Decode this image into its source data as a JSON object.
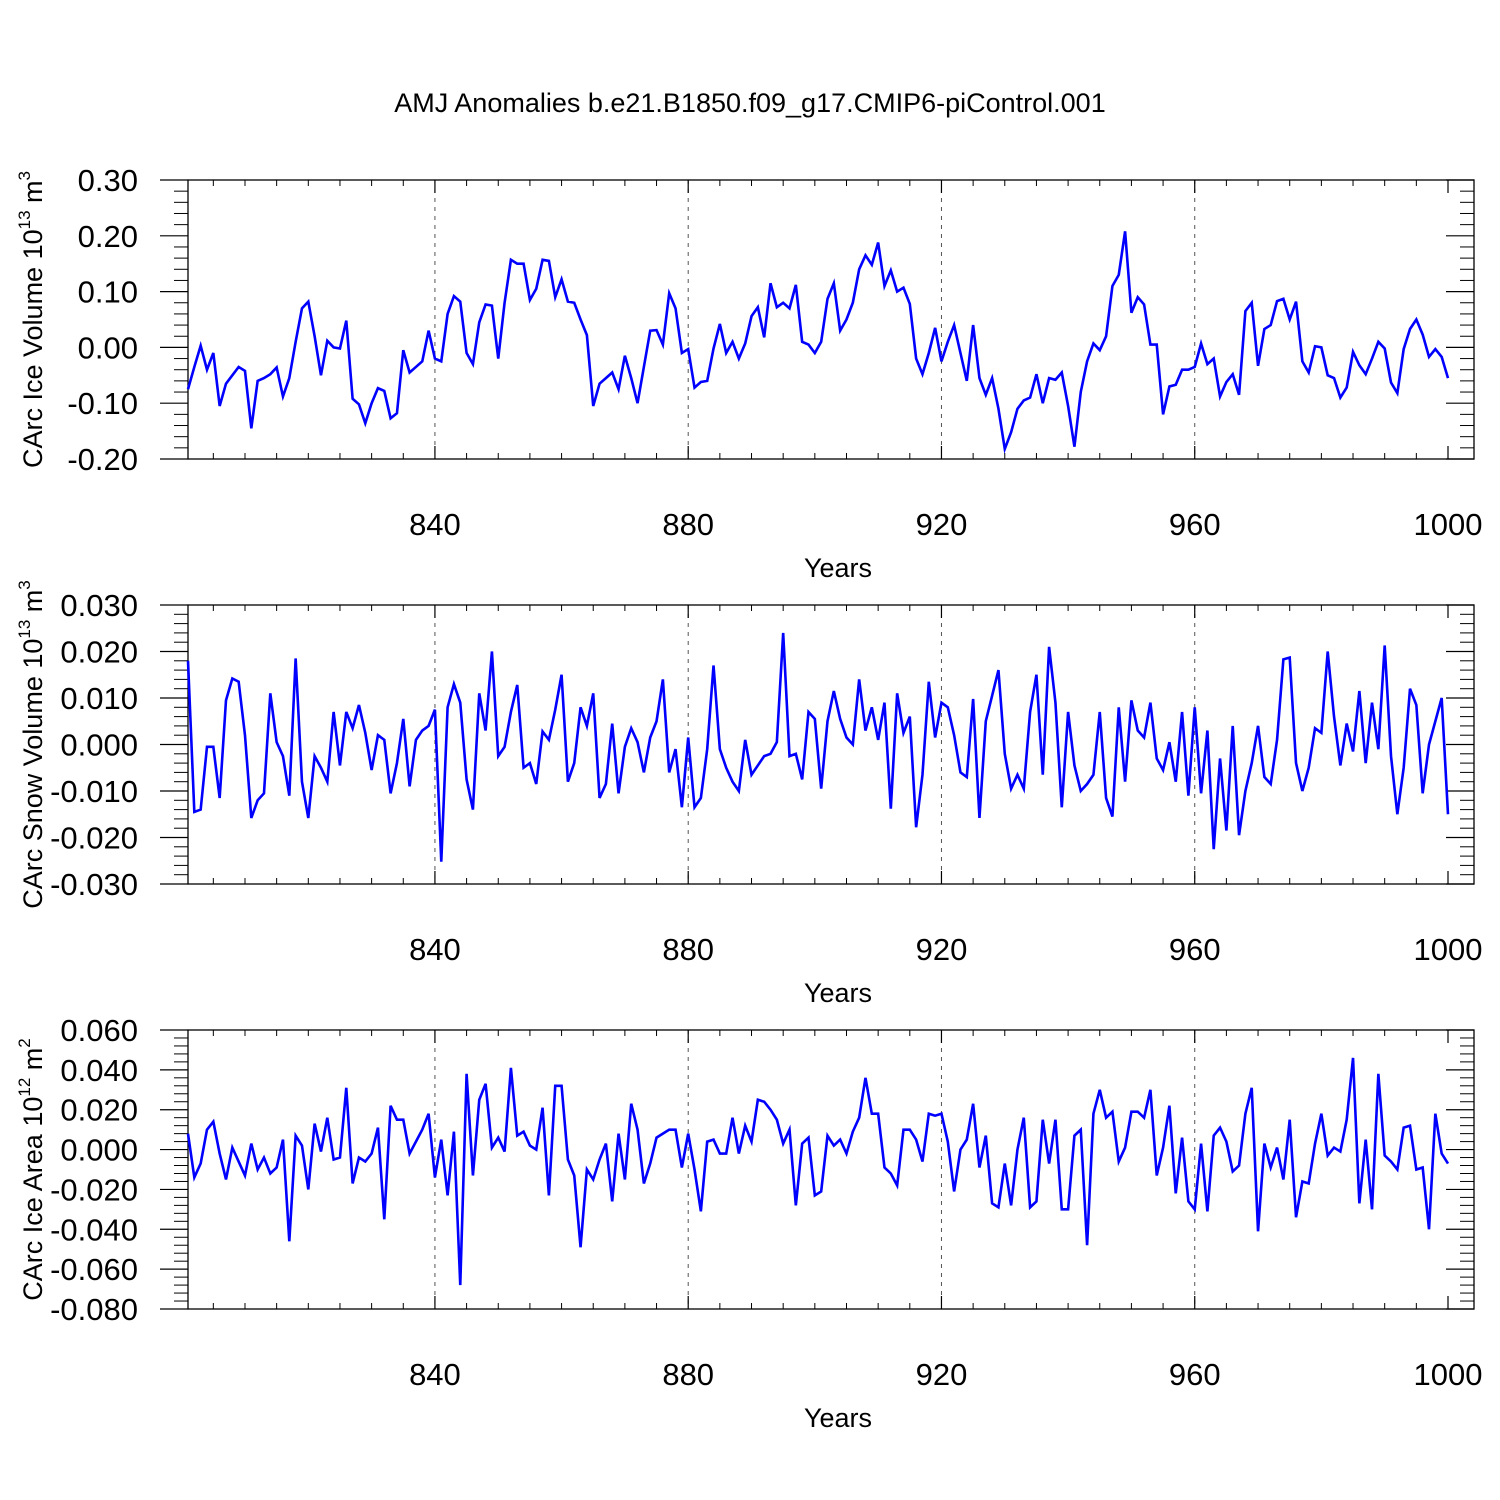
{
  "title": "AMJ Anomalies b.e21.B1850.f09_g17.CMIP6-piControl.001",
  "line_color": "#0000ff",
  "chart_data": [
    {
      "type": "line",
      "title": "",
      "xlabel": "Years",
      "ylabel": "CArc Ice Volume 10",
      "ylabel_exponent": "13",
      "ylabel_unit": " m",
      "ylabel_unit_exponent": "3",
      "xlim": [
        801,
        1000
      ],
      "ylim": [
        -0.2,
        0.3
      ],
      "xticks": [
        840,
        880,
        920,
        960,
        1000
      ],
      "xtick_labels": [
        "840",
        "880",
        "920",
        "960",
        "1000"
      ],
      "yticks": [
        -0.2,
        -0.1,
        0.0,
        0.1,
        0.2,
        0.3
      ],
      "ytick_labels": [
        "-0.20",
        "-0.10",
        "0.00",
        "0.10",
        "0.20",
        "0.30"
      ],
      "grid": "dashed vertical at major x ticks",
      "x_start": 801,
      "x_step": 1,
      "series": [
        {
          "values": [
            -0.075,
            -0.035,
            0.003,
            -0.04,
            -0.01,
            -0.105,
            -0.065,
            -0.05,
            -0.035,
            -0.042,
            -0.145,
            -0.06,
            -0.055,
            -0.048,
            -0.036,
            -0.088,
            -0.055,
            0.01,
            0.07,
            0.082,
            0.02,
            -0.05,
            0.012,
            0.0,
            -0.002,
            0.048,
            -0.092,
            -0.102,
            -0.136,
            -0.1,
            -0.073,
            -0.078,
            -0.127,
            -0.118,
            -0.005,
            -0.045,
            -0.035,
            -0.025,
            0.03,
            -0.02,
            -0.025,
            0.06,
            0.092,
            0.082,
            -0.01,
            -0.03,
            0.045,
            0.077,
            0.075,
            -0.02,
            0.08,
            0.157,
            0.15,
            0.15,
            0.085,
            0.105,
            0.157,
            0.155,
            0.09,
            0.122,
            0.082,
            0.08,
            0.05,
            0.022,
            -0.105,
            -0.065,
            -0.055,
            -0.045,
            -0.075,
            -0.015,
            -0.055,
            -0.1,
            -0.035,
            0.03,
            0.031,
            0.005,
            0.097,
            0.07,
            -0.01,
            -0.003,
            -0.072,
            -0.062,
            -0.06,
            -0.002,
            0.042,
            -0.01,
            0.01,
            -0.02,
            0.007,
            0.056,
            0.072,
            0.018,
            0.115,
            0.072,
            0.08,
            0.07,
            0.112,
            0.01,
            0.005,
            -0.01,
            0.01,
            0.087,
            0.115,
            0.03,
            0.05,
            0.08,
            0.14,
            0.165,
            0.148,
            0.188,
            0.11,
            0.138,
            0.1,
            0.107,
            0.078,
            -0.02,
            -0.048,
            -0.01,
            0.035,
            -0.025,
            0.01,
            0.04,
            -0.01,
            -0.06,
            0.04,
            -0.055,
            -0.085,
            -0.055,
            -0.11,
            -0.182,
            -0.152,
            -0.11,
            -0.095,
            -0.09,
            -0.048,
            -0.1,
            -0.055,
            -0.058,
            -0.045,
            -0.105,
            -0.178,
            -0.08,
            -0.025,
            0.007,
            -0.005,
            0.02,
            0.11,
            0.13,
            0.208,
            0.062,
            0.09,
            0.077,
            0.005,
            0.005,
            -0.12,
            -0.07,
            -0.067,
            -0.04,
            -0.04,
            -0.035,
            0.007,
            -0.03,
            -0.02,
            -0.088,
            -0.062,
            -0.048,
            -0.085,
            0.065,
            0.08,
            -0.033,
            0.033,
            0.04,
            0.083,
            0.087,
            0.05,
            0.082,
            -0.025,
            -0.045,
            0.002,
            0.0,
            -0.05,
            -0.055,
            -0.09,
            -0.072,
            -0.008,
            -0.032,
            -0.048,
            -0.02,
            0.01,
            -0.002,
            -0.063,
            -0.082,
            -0.003,
            0.033,
            0.05,
            0.023,
            -0.017,
            -0.003,
            -0.017,
            -0.055
          ]
        }
      ]
    },
    {
      "type": "line",
      "title": "",
      "xlabel": "Years",
      "ylabel": "CArc Snow Volume 10",
      "ylabel_exponent": "13",
      "ylabel_unit": " m",
      "ylabel_unit_exponent": "3",
      "xlim": [
        801,
        1000
      ],
      "ylim": [
        -0.03,
        0.03
      ],
      "xticks": [
        840,
        880,
        920,
        960,
        1000
      ],
      "xtick_labels": [
        "840",
        "880",
        "920",
        "960",
        "1000"
      ],
      "yticks": [
        -0.03,
        -0.02,
        -0.01,
        0.0,
        0.01,
        0.02,
        0.03
      ],
      "ytick_labels": [
        "-0.030",
        "-0.020",
        "-0.010",
        "0.000",
        "0.010",
        "0.020",
        "0.030"
      ],
      "grid": "dashed vertical at major x ticks",
      "x_start": 801,
      "x_step": 1,
      "series": [
        {
          "values": [
            0.018,
            -0.0145,
            -0.014,
            -0.0005,
            -0.0005,
            -0.0115,
            0.0095,
            0.0142,
            0.0135,
            0.002,
            -0.0158,
            -0.012,
            -0.0105,
            0.011,
            0.0005,
            -0.0025,
            -0.011,
            0.0185,
            -0.008,
            -0.0158,
            -0.0025,
            -0.005,
            -0.008,
            0.007,
            -0.0045,
            0.007,
            0.0035,
            0.0085,
            0.0025,
            -0.0055,
            0.002,
            0.001,
            -0.0105,
            -0.004,
            0.0055,
            -0.009,
            0.001,
            0.003,
            0.004,
            0.0075,
            -0.0252,
            0.008,
            0.013,
            0.009,
            -0.0075,
            -0.014,
            0.011,
            0.003,
            0.02,
            -0.0025,
            -0.0005,
            0.007,
            0.0128,
            -0.005,
            -0.004,
            -0.0085,
            0.0028,
            0.001,
            0.0075,
            0.015,
            -0.008,
            -0.004,
            0.008,
            0.004,
            0.011,
            -0.0115,
            -0.0085,
            0.0045,
            -0.0105,
            -0.0005,
            0.0035,
            0.0005,
            -0.006,
            0.0015,
            0.005,
            0.014,
            -0.006,
            -0.001,
            -0.0135,
            0.0015,
            -0.0135,
            -0.0115,
            -0.001,
            0.017,
            -0.001,
            -0.005,
            -0.008,
            -0.01,
            0.001,
            -0.0065,
            -0.0045,
            -0.0025,
            -0.002,
            0.0005,
            0.024,
            -0.0025,
            -0.002,
            -0.0075,
            0.007,
            0.0055,
            -0.0095,
            0.005,
            0.0115,
            0.0055,
            0.0015,
            0.0,
            0.014,
            0.003,
            0.008,
            0.001,
            0.009,
            -0.0138,
            0.011,
            0.0025,
            0.006,
            -0.0178,
            -0.0065,
            0.0135,
            0.0015,
            0.009,
            0.008,
            0.002,
            -0.006,
            -0.007,
            0.0098,
            -0.0158,
            0.005,
            0.0105,
            0.016,
            -0.002,
            -0.0095,
            -0.0065,
            -0.0095,
            0.007,
            0.015,
            -0.0065,
            0.021,
            0.009,
            -0.0135,
            0.007,
            -0.0045,
            -0.01,
            -0.0085,
            -0.0065,
            0.007,
            -0.0115,
            -0.0155,
            0.008,
            -0.008,
            0.0095,
            0.003,
            0.0015,
            0.009,
            -0.003,
            -0.0055,
            0.0005,
            -0.008,
            0.007,
            -0.011,
            0.008,
            -0.0105,
            0.003,
            -0.0225,
            -0.003,
            -0.0185,
            0.004,
            -0.0195,
            -0.01,
            -0.004,
            0.004,
            -0.007,
            -0.0085,
            0.001,
            0.0183,
            0.0187,
            -0.004,
            -0.01,
            -0.005,
            0.0035,
            0.0025,
            0.02,
            0.006,
            -0.0045,
            0.0045,
            -0.0015,
            0.0115,
            -0.004,
            0.009,
            -0.001,
            0.0213,
            -0.0025,
            -0.015,
            -0.005,
            0.012,
            0.0085,
            -0.0105,
            0.0,
            0.005,
            0.01,
            -0.015
          ]
        }
      ]
    },
    {
      "type": "line",
      "title": "",
      "xlabel": "Years",
      "ylabel": "CArc Ice Area 10",
      "ylabel_exponent": "12",
      "ylabel_unit": " m",
      "ylabel_unit_exponent": "2",
      "xlim": [
        801,
        1000
      ],
      "ylim": [
        -0.08,
        0.06
      ],
      "xticks": [
        840,
        880,
        920,
        960,
        1000
      ],
      "xtick_labels": [
        "840",
        "880",
        "920",
        "960",
        "1000"
      ],
      "yticks": [
        -0.08,
        -0.06,
        -0.04,
        -0.02,
        0.0,
        0.02,
        0.04,
        0.06
      ],
      "ytick_labels": [
        "-0.080",
        "-0.060",
        "-0.040",
        "-0.020",
        "0.000",
        "0.020",
        "0.040",
        "0.060"
      ],
      "grid": "dashed vertical at major x ticks",
      "x_start": 801,
      "x_step": 1,
      "series": [
        {
          "values": [
            0.008,
            -0.014,
            -0.007,
            0.01,
            0.014,
            -0.002,
            -0.015,
            0.001,
            -0.006,
            -0.013,
            0.003,
            -0.01,
            -0.004,
            -0.012,
            -0.009,
            0.005,
            -0.046,
            0.007,
            0.002,
            -0.02,
            0.013,
            -0.001,
            0.016,
            -0.005,
            -0.004,
            0.031,
            -0.017,
            -0.004,
            -0.006,
            -0.002,
            0.011,
            -0.035,
            0.022,
            0.015,
            0.015,
            -0.002,
            0.004,
            0.01,
            0.018,
            -0.014,
            0.005,
            -0.023,
            0.009,
            -0.068,
            0.038,
            -0.013,
            0.025,
            0.033,
            0.001,
            0.006,
            -0.001,
            0.041,
            0.007,
            0.009,
            0.002,
            0.0,
            0.021,
            -0.023,
            0.032,
            0.032,
            -0.005,
            -0.013,
            -0.049,
            -0.01,
            -0.015,
            -0.005,
            0.003,
            -0.026,
            0.008,
            -0.015,
            0.023,
            0.01,
            -0.017,
            -0.007,
            0.006,
            0.008,
            0.01,
            0.01,
            -0.009,
            0.008,
            -0.01,
            -0.031,
            0.004,
            0.005,
            -0.002,
            -0.002,
            0.016,
            -0.002,
            0.012,
            0.004,
            0.025,
            0.024,
            0.02,
            0.015,
            0.003,
            0.01,
            -0.028,
            0.003,
            0.006,
            -0.023,
            -0.021,
            0.007,
            0.002,
            0.005,
            -0.002,
            0.009,
            0.016,
            0.036,
            0.018,
            0.018,
            -0.009,
            -0.012,
            -0.018,
            0.01,
            0.01,
            0.005,
            -0.006,
            0.018,
            0.017,
            0.018,
            0.004,
            -0.021,
            0.0,
            0.005,
            0.023,
            -0.009,
            0.007,
            -0.027,
            -0.029,
            -0.007,
            -0.028,
            0.0,
            0.016,
            -0.029,
            -0.026,
            0.015,
            -0.007,
            0.015,
            -0.03,
            -0.03,
            0.007,
            0.01,
            -0.048,
            0.018,
            0.03,
            0.016,
            0.019,
            -0.006,
            0.001,
            0.019,
            0.019,
            0.016,
            0.03,
            -0.013,
            0.001,
            0.022,
            -0.022,
            0.006,
            -0.026,
            -0.03,
            0.003,
            -0.031,
            0.007,
            0.011,
            0.004,
            -0.011,
            -0.008,
            0.018,
            0.031,
            -0.041,
            0.003,
            -0.009,
            0.001,
            -0.015,
            0.015,
            -0.034,
            -0.016,
            -0.017,
            0.003,
            0.018,
            -0.003,
            0.001,
            -0.001,
            0.015,
            0.046,
            -0.027,
            0.005,
            -0.03,
            0.038,
            -0.003,
            -0.006,
            -0.01,
            0.011,
            0.012,
            -0.01,
            -0.009,
            -0.04,
            0.018,
            -0.002,
            -0.007
          ]
        }
      ]
    }
  ]
}
